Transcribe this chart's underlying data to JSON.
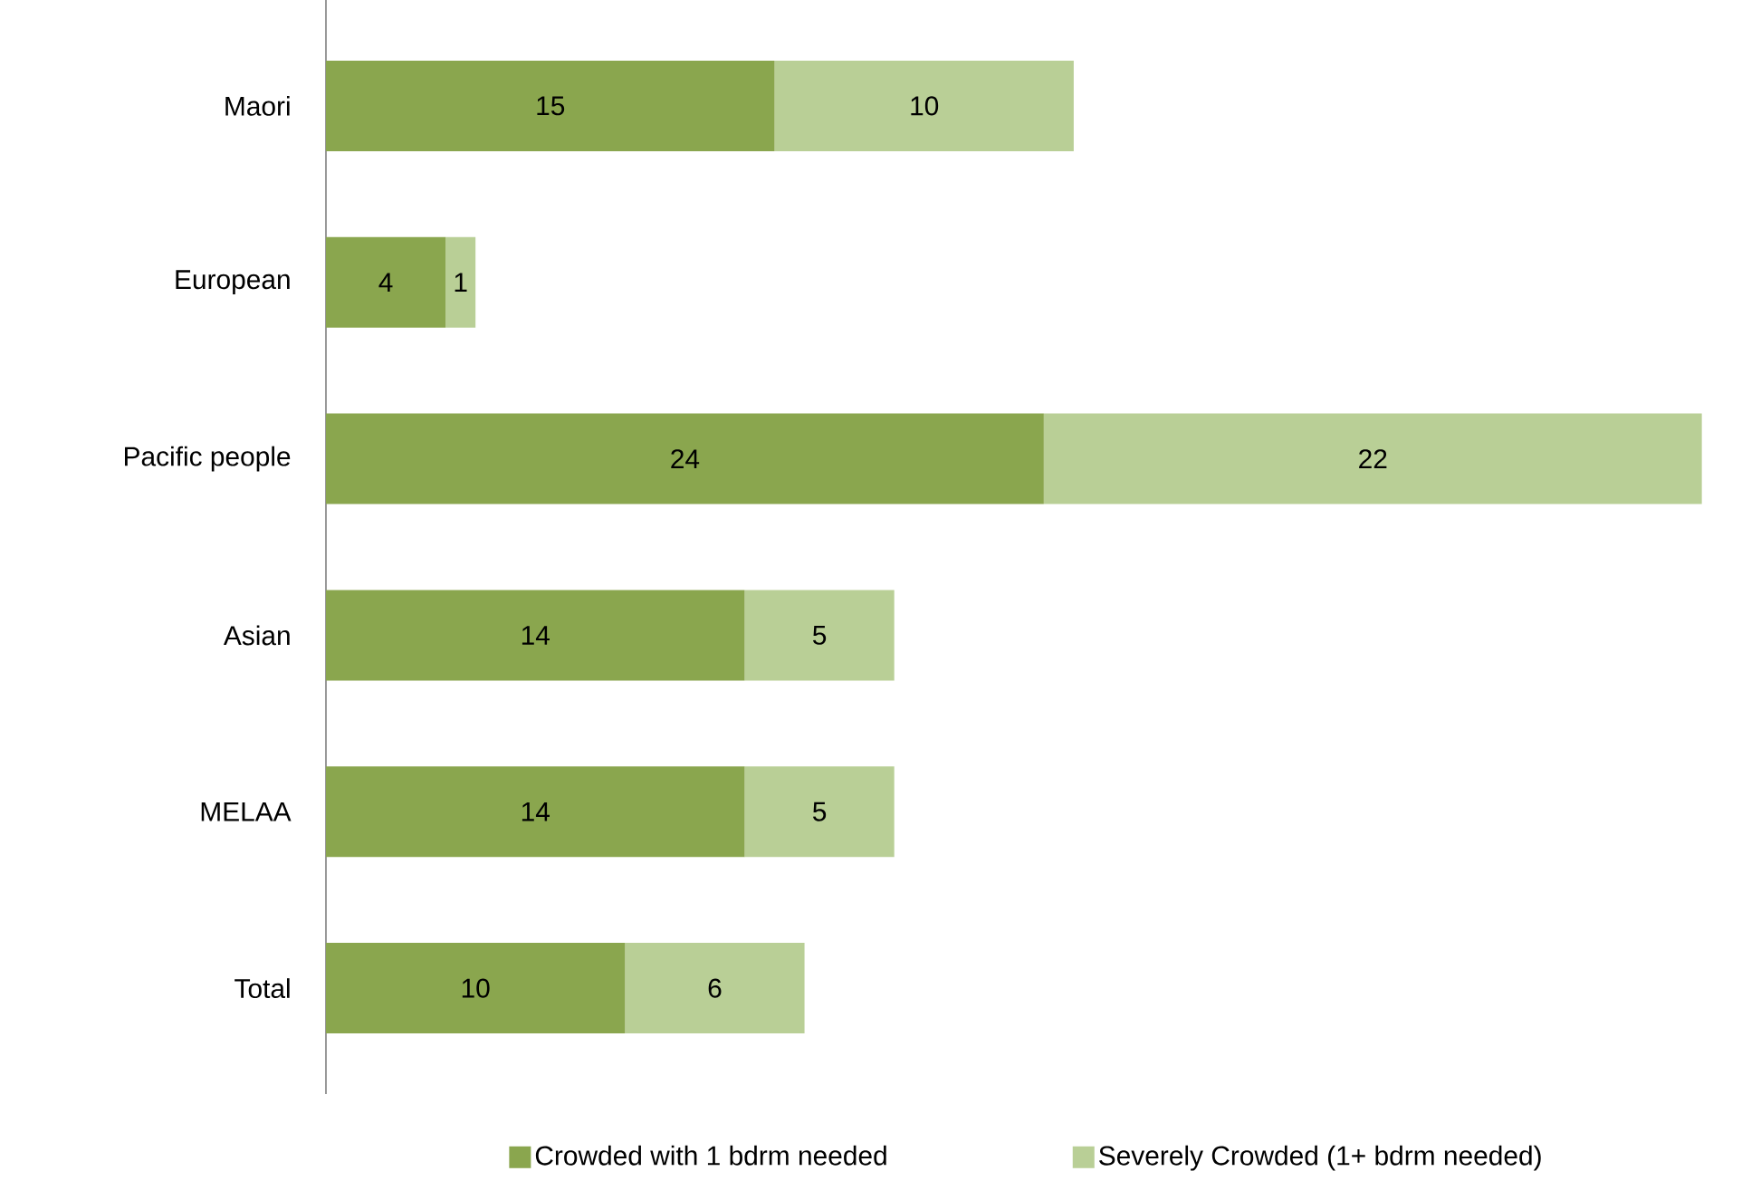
{
  "chart_data": {
    "type": "bar",
    "orientation": "horizontal",
    "stacked": true,
    "data_labels": true,
    "legend": "bottom",
    "grid": false,
    "categories": [
      "Maori",
      "European",
      "Pacific people",
      "Asian",
      "MELAA",
      "Total"
    ],
    "series": [
      {
        "name": "Crowded with 1 bdrm needed",
        "color": "#8aa64e",
        "values": [
          15,
          4,
          24,
          14,
          14,
          10
        ]
      },
      {
        "name": "Severely Crowded (1+ bdrm needed)",
        "color": "#b9cf96",
        "values": [
          10,
          1,
          22,
          5,
          5,
          6
        ]
      }
    ]
  }
}
